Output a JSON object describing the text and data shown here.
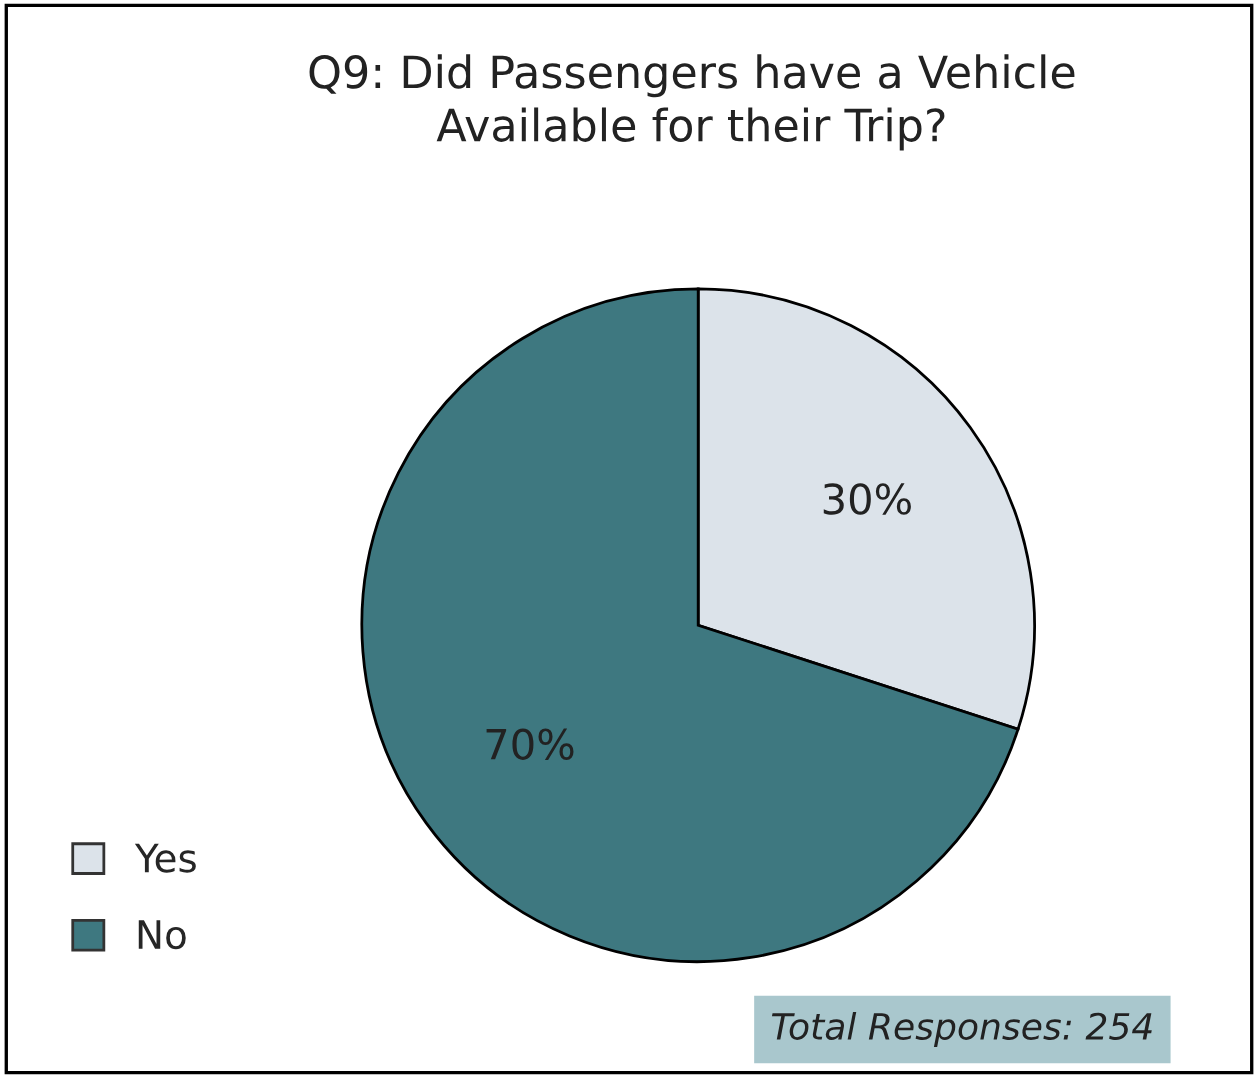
{
  "chart_data": {
    "type": "pie",
    "title": "Q9: Did Passengers have a Vehicle\nAvailable for their Trip?",
    "categories": [
      "Yes",
      "No"
    ],
    "values": [
      30,
      70
    ],
    "colors": [
      "#dce3ea",
      "#3e7880"
    ],
    "value_labels": [
      "30%",
      "70%"
    ],
    "legend": "bottom left",
    "annotations": [
      "Total Responses: 254"
    ]
  }
}
